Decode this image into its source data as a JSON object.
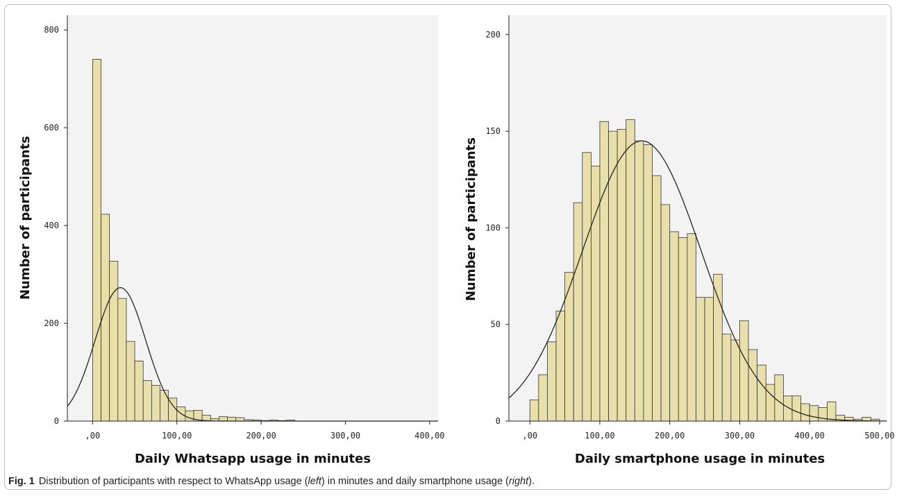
{
  "caption": {
    "label": "Fig. 1",
    "text_1": "Distribution of participants with respect to WhatsApp usage (",
    "left": "left",
    "text_2": ") in minutes and daily smartphone usage (",
    "right": "right",
    "text_3": ")."
  },
  "colors": {
    "bar_fill": "#e9dfaa",
    "bar_stroke": "#333333",
    "plot_bg": "#f3f3f3",
    "curve": "#222222"
  },
  "chart_data": [
    {
      "type": "bar",
      "title": "",
      "xlabel": "Daily Whatsapp usage in minutes",
      "ylabel": "Number of participants",
      "xlim": [
        -30,
        410
      ],
      "ylim": [
        0,
        830
      ],
      "bin_width": 10,
      "x": [
        5,
        15,
        25,
        35,
        45,
        55,
        65,
        75,
        85,
        95,
        105,
        115,
        125,
        135,
        145,
        155,
        165,
        175,
        185,
        195,
        205,
        215,
        225,
        235
      ],
      "values": [
        740,
        423,
        327,
        251,
        163,
        123,
        83,
        73,
        63,
        47,
        29,
        21,
        22,
        12,
        5,
        9,
        8,
        7,
        3,
        2,
        1,
        2,
        1,
        2
      ],
      "curve": {
        "type": "normal",
        "mean": 33,
        "sd": 30,
        "peak": 273
      },
      "xticks": [
        0,
        100,
        200,
        300,
        400
      ],
      "xtick_labels": [
        ",00",
        "100,00",
        "200,00",
        "300,00",
        "400,00"
      ],
      "yticks": [
        0,
        200,
        400,
        600,
        800
      ],
      "ytick_labels": [
        "0",
        "200",
        "400",
        "600",
        "800"
      ],
      "grid": false
    },
    {
      "type": "bar",
      "title": "",
      "xlabel": "Daily smartphone usage in minutes",
      "ylabel": "Number of participants",
      "xlim": [
        -30,
        510
      ],
      "ylim": [
        0,
        210
      ],
      "bin_width": 12.5,
      "x": [
        6.25,
        18.75,
        31.25,
        43.75,
        56.25,
        68.75,
        81.25,
        93.75,
        106.25,
        118.75,
        131.25,
        143.75,
        156.25,
        168.75,
        181.25,
        193.75,
        206.25,
        218.75,
        231.25,
        243.75,
        256.25,
        268.75,
        281.25,
        293.75,
        306.25,
        318.75,
        331.25,
        343.75,
        356.25,
        368.75,
        381.25,
        393.75,
        406.25,
        418.75,
        431.25,
        443.75,
        456.25,
        468.75,
        481.25,
        493.75
      ],
      "values": [
        11,
        24,
        41,
        57,
        77,
        113,
        139,
        132,
        155,
        150,
        151,
        156,
        145,
        143,
        127,
        112,
        98,
        95,
        97,
        64,
        64,
        76,
        45,
        42,
        52,
        37,
        29,
        19,
        24,
        13,
        13,
        9,
        8,
        7,
        10,
        3,
        2,
        1,
        2,
        1
      ],
      "curve": {
        "type": "normal",
        "mean": 160,
        "sd": 85,
        "peak": 145
      },
      "xticks": [
        0,
        100,
        200,
        300,
        400,
        500
      ],
      "xtick_labels": [
        ",00",
        "100,00",
        "200,00",
        "300,00",
        "400,00",
        "500,00"
      ],
      "yticks": [
        0,
        50,
        100,
        150,
        200
      ],
      "ytick_labels": [
        "0",
        "50",
        "100",
        "150",
        "200"
      ],
      "grid": false
    }
  ]
}
